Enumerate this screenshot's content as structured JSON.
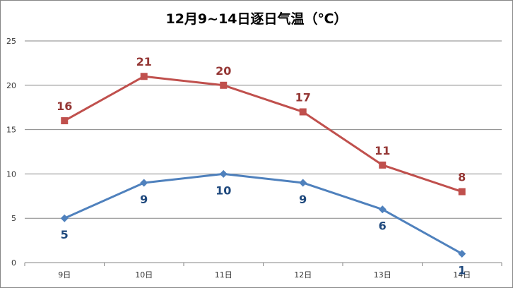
{
  "chart_data": {
    "type": "line",
    "title": "12月9~14日逐日气温（℃）",
    "categories": [
      "9日",
      "10日",
      "11日",
      "12日",
      "13日",
      "14日"
    ],
    "ylim": [
      0,
      25
    ],
    "yticks": [
      0,
      5,
      10,
      15,
      20,
      25
    ],
    "grid": true,
    "series": [
      {
        "values": [
          16,
          21,
          20,
          17,
          11,
          8
        ],
        "color": "#C0504D",
        "label_color": "#953735",
        "marker": "square",
        "label_position": "above"
      },
      {
        "values": [
          5,
          9,
          10,
          9,
          6,
          1
        ],
        "color": "#4F81BD",
        "label_color": "#1F497D",
        "marker": "diamond",
        "label_position": "below"
      }
    ]
  }
}
